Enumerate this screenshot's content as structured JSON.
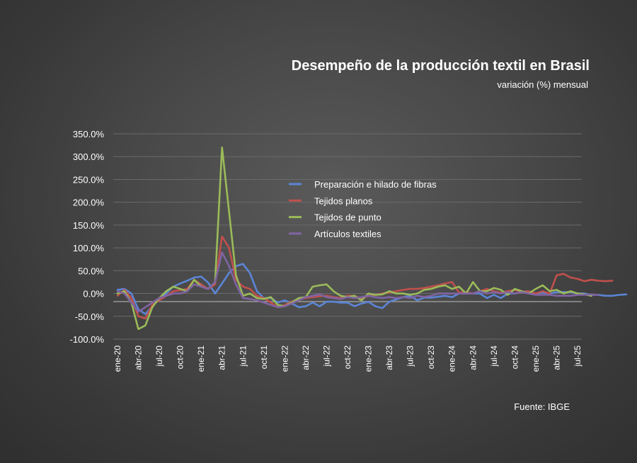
{
  "chart_data": {
    "type": "line",
    "title": "Desempeño de la producción textil en Brasil",
    "subtitle": "variación (%) mensual",
    "source": "Fuente: IBGE",
    "xlabel": "",
    "ylabel": "",
    "ylim": [
      -100,
      350
    ],
    "y_ticks": [
      "350.0%",
      "300.0%",
      "250.0%",
      "200.0%",
      "150.0%",
      "100.0%",
      "50.0%",
      "0.0%",
      "-50.0%",
      "-100.0%"
    ],
    "x_tick_labels": [
      "ene-20",
      "abr-20",
      "jul-20",
      "oct-20",
      "ene-21",
      "abr-21",
      "jul-21",
      "oct-21",
      "ene-22",
      "abr-22",
      "jul-22",
      "oct-22",
      "ene-23",
      "abr-23",
      "jul-23",
      "oct-23",
      "ene-24",
      "abr-24",
      "jul-24",
      "oct-24",
      "ene-25",
      "abr-25",
      "jul-25"
    ],
    "legend_position": "center",
    "series": [
      {
        "name": "Preparación e hilado de fibras",
        "color": "#5b85d6",
        "values": [
          8,
          10,
          0,
          -35,
          -45,
          -28,
          -12,
          0,
          15,
          22,
          28,
          35,
          37,
          24,
          0,
          22,
          45,
          60,
          65,
          45,
          5,
          -10,
          -10,
          -20,
          -15,
          -22,
          -30,
          -28,
          -20,
          -28,
          -18,
          -18,
          -20,
          -20,
          -28,
          -22,
          -18,
          -28,
          -32,
          -18,
          -13,
          -8,
          -5,
          -15,
          -9,
          -9,
          -7,
          -5,
          -8,
          0,
          0,
          0,
          0,
          -10,
          -3,
          -10,
          0,
          0,
          3,
          5,
          0,
          2,
          0,
          3,
          3,
          3,
          0,
          0,
          -3,
          -3,
          -5,
          -5,
          -3,
          -2
        ]
      },
      {
        "name": "Tejidos planos",
        "color": "#c0504d",
        "values": [
          -5,
          8,
          -10,
          -50,
          -55,
          -25,
          -15,
          -5,
          5,
          7,
          10,
          30,
          20,
          10,
          20,
          125,
          100,
          30,
          15,
          10,
          -5,
          -10,
          -20,
          -30,
          -25,
          -18,
          -12,
          -10,
          -8,
          -6,
          -5,
          -8,
          -10,
          -5,
          -5,
          -12,
          -5,
          -3,
          0,
          2,
          5,
          8,
          10,
          10,
          12,
          15,
          18,
          22,
          25,
          2,
          3,
          0,
          5,
          10,
          5,
          2,
          5,
          8,
          3,
          5,
          0,
          5,
          0,
          40,
          43,
          35,
          32,
          27,
          30,
          28,
          27,
          28
        ]
      },
      {
        "name": "Tejidos de punto",
        "color": "#9bbb59",
        "values": [
          0,
          5,
          -20,
          -78,
          -70,
          -30,
          -10,
          5,
          15,
          10,
          5,
          30,
          15,
          10,
          25,
          320,
          180,
          40,
          -5,
          0,
          -10,
          -12,
          -8,
          -25,
          -28,
          -20,
          -10,
          -8,
          15,
          18,
          20,
          5,
          -5,
          -8,
          -5,
          -15,
          0,
          -3,
          -2,
          5,
          0,
          0,
          -3,
          0,
          8,
          10,
          15,
          18,
          10,
          15,
          0,
          25,
          5,
          5,
          12,
          8,
          -3,
          10,
          5,
          0,
          10,
          18,
          5,
          8,
          0,
          5,
          0,
          -2,
          -5
        ]
      },
      {
        "name": "Artículos textiles",
        "color": "#8064a2",
        "values": [
          5,
          0,
          -20,
          -40,
          -30,
          -20,
          -10,
          -5,
          0,
          0,
          5,
          20,
          15,
          10,
          25,
          90,
          60,
          20,
          -10,
          -12,
          -15,
          -20,
          -25,
          -30,
          -28,
          -22,
          -15,
          -8,
          -5,
          -2,
          -8,
          -10,
          -12,
          -8,
          -10,
          -8,
          -5,
          -8,
          -10,
          -8,
          -10,
          -8,
          -10,
          -5,
          -8,
          -5,
          0,
          0,
          0,
          0,
          0,
          0,
          5,
          0,
          3,
          0,
          3,
          0,
          3,
          0,
          -3,
          -3,
          -3,
          -5,
          -5,
          -5,
          -3,
          -3,
          -2,
          -3
        ]
      }
    ]
  }
}
